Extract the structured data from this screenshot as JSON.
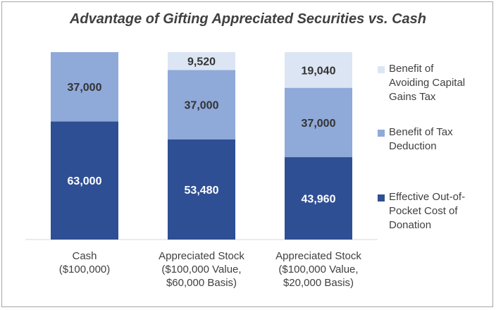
{
  "chart_data": {
    "type": "bar",
    "stacked": true,
    "title": "Advantage of  Gifting Appreciated Securities vs. Cash",
    "categories": [
      "Cash\n($100,000)",
      "Appreciated Stock\n($100,000 Value,\n$60,000 Basis)",
      "Appreciated Stock\n($100,000 Value,\n$20,000 Basis)"
    ],
    "series": [
      {
        "name": "Effective Out-of-\nPocket Cost of\nDonation",
        "color": "#2f4f94",
        "label_color": "#ffffff",
        "values": [
          63000,
          53480,
          43960
        ],
        "labels": [
          "63,000",
          "53,480",
          "43,960"
        ]
      },
      {
        "name": "Benefit of Tax\nDeduction",
        "color": "#8fa9d9",
        "label_color": "#333333",
        "values": [
          37000,
          37000,
          37000
        ],
        "labels": [
          "37,000",
          "37,000",
          "37,000"
        ]
      },
      {
        "name": "Benefit of\nAvoiding Capital\nGains Tax",
        "color": "#dce5f4",
        "label_color": "#333333",
        "values": [
          0,
          9520,
          19040
        ],
        "labels": [
          "",
          "9,520",
          "19,040"
        ]
      }
    ],
    "ylim": [
      0,
      100000
    ],
    "grid": false,
    "legend": "right"
  }
}
